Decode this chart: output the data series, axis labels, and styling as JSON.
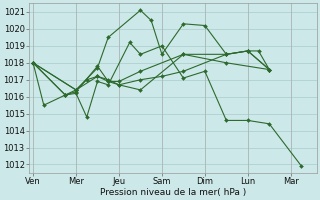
{
  "background_color": "#cce8e8",
  "grid_color": "#aacccc",
  "line_color": "#2d6a2d",
  "marker_color": "#2d6a2d",
  "xlabel": "Pression niveau de la mer( hPa )",
  "ylim": [
    1011.5,
    1021.5
  ],
  "yticks": [
    1012,
    1013,
    1014,
    1015,
    1016,
    1017,
    1018,
    1019,
    1020,
    1021
  ],
  "x_labels": [
    "Ven",
    "Mer",
    "Jeu",
    "Sam",
    "Dim",
    "Lun",
    "Mar"
  ],
  "x_positions": [
    0,
    2,
    4,
    6,
    8,
    10,
    12
  ],
  "xlim": [
    -0.2,
    13.2
  ],
  "series_x": [
    [
      0,
      0.5,
      1.5,
      2.0,
      2.5,
      3.0,
      3.5,
      4.5,
      5.0,
      6.0,
      7.0,
      8.0,
      9.0,
      10.0,
      11.0,
      12.5
    ],
    [
      0,
      1.5,
      2.0,
      3.0,
      3.5,
      4.0,
      5.0,
      6.0,
      7.0,
      9.0,
      10.0,
      11.0
    ],
    [
      0,
      1.5,
      2.0,
      3.0,
      3.5,
      4.0,
      5.0,
      7.0,
      9.0,
      11.0
    ],
    [
      0,
      2.0,
      3.0,
      3.5,
      5.0,
      5.5,
      6.0,
      7.0,
      8.0,
      9.0,
      10.0,
      10.5,
      11.0
    ],
    [
      0,
      2.0,
      2.5,
      3.0,
      3.5,
      4.0,
      5.0,
      7.0,
      9.0,
      10.0,
      11.0
    ]
  ],
  "series_y": [
    [
      1018.0,
      1015.5,
      1016.1,
      1016.2,
      1014.8,
      1016.9,
      1016.7,
      1019.2,
      1018.5,
      1019.0,
      1017.1,
      1017.5,
      1014.6,
      1014.6,
      1014.4,
      1011.9
    ],
    [
      1018.0,
      1016.1,
      1016.3,
      1017.8,
      1016.9,
      1016.7,
      1017.0,
      1017.2,
      1017.5,
      1018.5,
      1018.7,
      1017.6
    ],
    [
      1018.0,
      1016.1,
      1016.4,
      1017.2,
      1016.9,
      1016.9,
      1017.5,
      1018.5,
      1018.0,
      1017.6
    ],
    [
      1018.0,
      1016.4,
      1017.7,
      1019.5,
      1021.1,
      1020.5,
      1018.5,
      1020.3,
      1020.2,
      1018.5,
      1018.7,
      1018.7,
      1017.6
    ],
    [
      1018.0,
      1016.4,
      1017.0,
      1017.2,
      1017.0,
      1016.7,
      1016.4,
      1018.5,
      1018.5,
      1018.7,
      1017.6
    ]
  ],
  "tick_fontsize": 6,
  "xlabel_fontsize": 6.5,
  "lw": 0.8,
  "ms": 2.0
}
